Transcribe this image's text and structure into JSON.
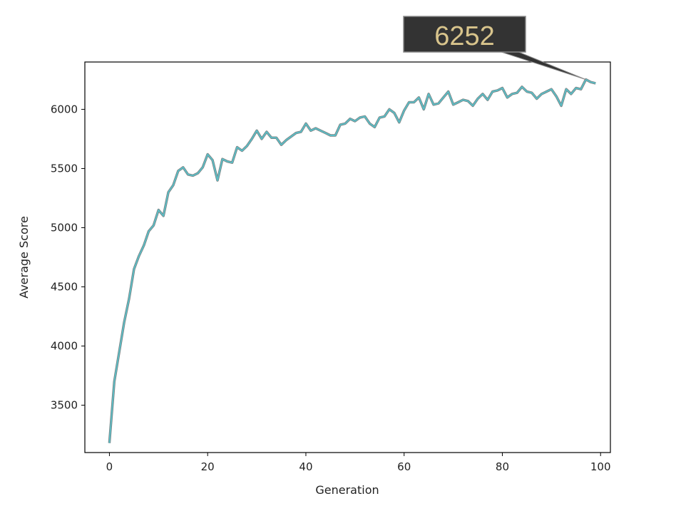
{
  "chart_data": {
    "type": "line",
    "title": "",
    "xlabel": "Generation",
    "ylabel": "Average Score",
    "xlim": [
      -5,
      102
    ],
    "ylim": [
      3100,
      6400
    ],
    "x_ticks": [
      0,
      20,
      40,
      60,
      80,
      100
    ],
    "y_ticks": [
      3500,
      4000,
      4500,
      5000,
      5500,
      6000
    ],
    "grid": false,
    "line_colors": [
      "#7f7f7f",
      "#5bbcc4"
    ],
    "annotation": {
      "text": "6252",
      "x": 97,
      "y": 6252,
      "box_color": "#333333",
      "text_color": "#d8c48c"
    },
    "series": [
      {
        "x": [
          0,
          1,
          2,
          3,
          4,
          5,
          6,
          7,
          8,
          9,
          10,
          11,
          12,
          13,
          14,
          15,
          16,
          17,
          18,
          19,
          20,
          21,
          22,
          23,
          24,
          25,
          26,
          27,
          28,
          29,
          30,
          31,
          32,
          33,
          34,
          35,
          36,
          37,
          38,
          39,
          40,
          41,
          42,
          43,
          44,
          45,
          46,
          47,
          48,
          49,
          50,
          51,
          52,
          53,
          54,
          55,
          56,
          57,
          58,
          59,
          60,
          61,
          62,
          63,
          64,
          65,
          66,
          67,
          68,
          69,
          70,
          71,
          72,
          73,
          74,
          75,
          76,
          77,
          78,
          79,
          80,
          81,
          82,
          83,
          84,
          85,
          86,
          87,
          88,
          89,
          90,
          91,
          92,
          93,
          94,
          95,
          96,
          97,
          98,
          99
        ],
        "y": [
          3180,
          3700,
          3950,
          4200,
          4400,
          4650,
          4760,
          4850,
          4970,
          5020,
          5150,
          5100,
          5300,
          5360,
          5480,
          5510,
          5450,
          5440,
          5460,
          5510,
          5620,
          5570,
          5400,
          5580,
          5560,
          5550,
          5680,
          5650,
          5690,
          5750,
          5820,
          5750,
          5810,
          5760,
          5760,
          5700,
          5740,
          5770,
          5800,
          5810,
          5880,
          5820,
          5840,
          5820,
          5800,
          5780,
          5780,
          5870,
          5880,
          5920,
          5900,
          5930,
          5940,
          5880,
          5850,
          5930,
          5940,
          6000,
          5970,
          5890,
          5990,
          6060,
          6060,
          6100,
          6000,
          6130,
          6040,
          6050,
          6100,
          6150,
          6040,
          6060,
          6080,
          6070,
          6030,
          6090,
          6130,
          6080,
          6150,
          6160,
          6180,
          6100,
          6130,
          6140,
          6190,
          6150,
          6140,
          6090,
          6130,
          6150,
          6170,
          6110,
          6030,
          6170,
          6130,
          6180,
          6170,
          6252,
          6230,
          6220
        ]
      }
    ]
  }
}
